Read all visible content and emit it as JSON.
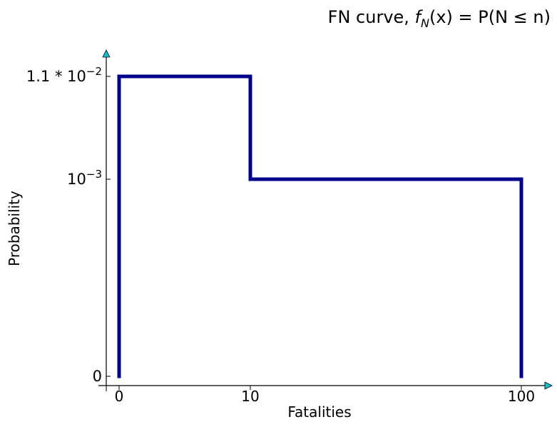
{
  "chart_data": {
    "type": "line",
    "title_prefix": "FN curve, ",
    "title_math": {
      "f": "f",
      "sub": "N",
      "rest": "(x) = P(N ≤ n)"
    },
    "xlabel": "Fatalities",
    "ylabel": "Probability",
    "x_ticks": [
      {
        "value": 0,
        "label": "0"
      },
      {
        "value": 10,
        "label": "10"
      },
      {
        "value": 100,
        "label": "100"
      }
    ],
    "y_ticks": [
      {
        "value": 0,
        "label_base": "0",
        "label_sup": ""
      },
      {
        "value": 0.001,
        "label_base": "10",
        "label_sup": "−3"
      },
      {
        "value": 0.011,
        "label_base": "1.1 * 10",
        "label_sup": "−2"
      }
    ],
    "series": [
      {
        "color": "#00008b",
        "points": [
          {
            "x": 0,
            "y": 0
          },
          {
            "x": 0,
            "y": 0.011
          },
          {
            "x": 10,
            "y": 0.011
          },
          {
            "x": 10,
            "y": 0.001
          },
          {
            "x": 100,
            "y": 0.001
          },
          {
            "x": 100,
            "y": 0
          }
        ]
      }
    ],
    "axis_arrow_color": "#17becf",
    "grid": false
  }
}
